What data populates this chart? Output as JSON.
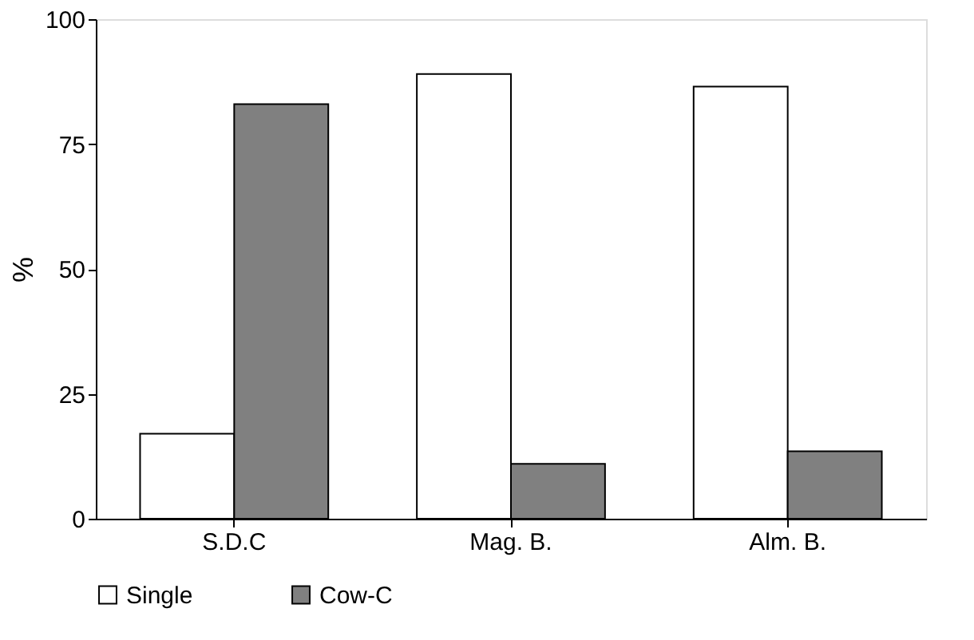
{
  "chart_data": {
    "type": "bar",
    "ylabel": "%",
    "categories": [
      "S.D.C",
      "Mag. B.",
      "Alm. B."
    ],
    "series": [
      {
        "name": "Single",
        "color": "#ffffff",
        "values": [
          17,
          89,
          86.5
        ]
      },
      {
        "name": "Cow-C",
        "color": "#808080",
        "values": [
          83,
          11,
          13.5
        ]
      }
    ],
    "ylim": [
      0,
      100
    ],
    "yticks": [
      0,
      25,
      50,
      75,
      100
    ],
    "grid": false,
    "legend": "bottom"
  }
}
